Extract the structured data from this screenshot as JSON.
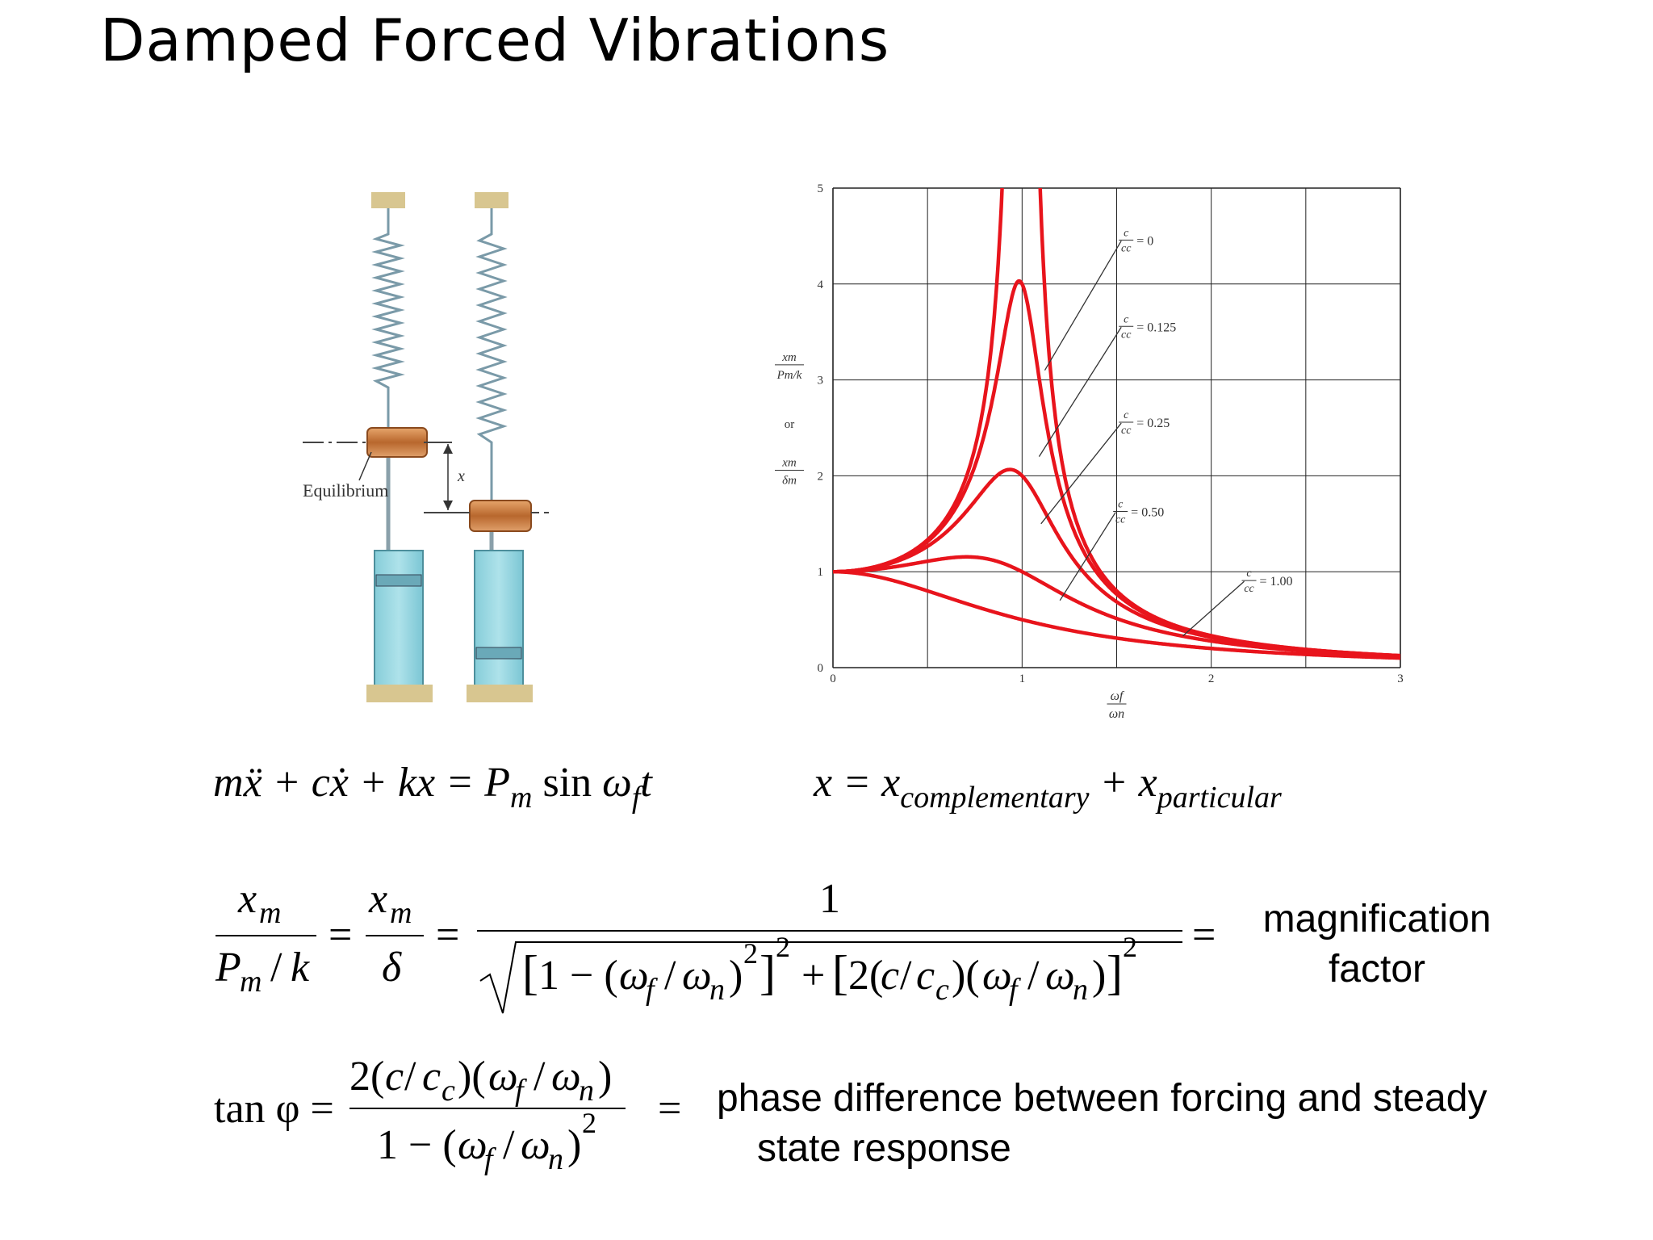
{
  "slide": {
    "title": "Damped Forced Vibrations"
  },
  "illustration": {
    "equilibrium_label": "Equilibrium",
    "displacement_label": "x"
  },
  "chart_data": {
    "type": "line",
    "xlabel": "ω_f / ω_n",
    "ylabel": "x_m / (P_m/k) or x_m / δ_m",
    "ylabel_parts": [
      "xm",
      "Pm/k",
      "or",
      "xm",
      "δm"
    ],
    "xlabel_parts": [
      "ωf",
      "ωn"
    ],
    "xlim": [
      0,
      3
    ],
    "ylim": [
      0,
      5
    ],
    "xticks": [
      0,
      1,
      2,
      3
    ],
    "yticks": [
      0,
      1,
      2,
      3,
      4,
      5
    ],
    "xtick_labels": [
      "0",
      "1",
      "2",
      "3"
    ],
    "ytick_labels": [
      "0",
      "1",
      "2",
      "3",
      "4",
      "5"
    ],
    "grid": true,
    "series": [
      {
        "name": "c/cc = 0",
        "zeta": 0,
        "annotation": "= 0"
      },
      {
        "name": "c/cc = 0.125",
        "zeta": 0.125,
        "annotation": "= 0.125"
      },
      {
        "name": "c/cc = 0.25",
        "zeta": 0.25,
        "annotation": "= 0.25"
      },
      {
        "name": "c/cc = 0.50",
        "zeta": 0.5,
        "annotation": "= 0.50"
      },
      {
        "name": "c/cc = 1.00",
        "zeta": 1.0,
        "annotation": "= 1.00"
      }
    ],
    "ratio_label_num": "c",
    "ratio_label_den": "cc",
    "line_color": "#e8141c"
  },
  "equations": {
    "eom_lhs": "mẍ + cẋ + kx = ",
    "eom_P": "P",
    "eom_m": "m",
    "eom_sin": " sin ",
    "eom_omega": "ω",
    "eom_f": "f",
    "eom_t": "t",
    "sum_lhs": "x = x",
    "sum_sub1": "complementary",
    "sum_plus": " + x",
    "sum_sub2": "particular",
    "mag_numerator": "1",
    "mag_note_line1": "magnification",
    "mag_note_line2": "factor",
    "phase_lhs": "tan φ =",
    "phase_note_line1": "phase difference between forcing and steady",
    "phase_note_line2": "state response"
  }
}
